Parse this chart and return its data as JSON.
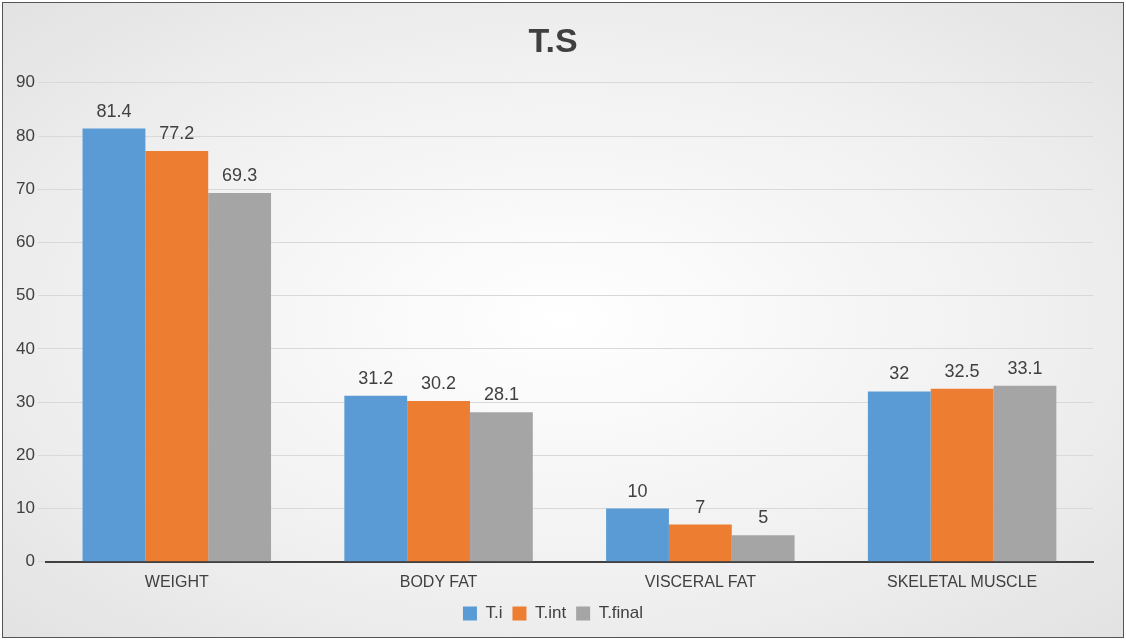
{
  "chart_data": {
    "type": "bar",
    "title": "T.S",
    "categories": [
      "WEIGHT",
      "BODY FAT",
      "VISCERAL FAT",
      "SKELETAL MUSCLE"
    ],
    "series": [
      {
        "name": "T.i",
        "color": "#5b9bd5",
        "values": [
          81.4,
          31.2,
          10,
          32
        ]
      },
      {
        "name": "T.int",
        "color": "#ed7d31",
        "values": [
          77.2,
          30.2,
          7,
          32.5
        ]
      },
      {
        "name": "T.final",
        "color": "#a5a5a5",
        "values": [
          69.3,
          28.1,
          5,
          33.1
        ]
      }
    ],
    "ylim": [
      0,
      90
    ],
    "yticks": [
      0,
      10,
      20,
      30,
      40,
      50,
      60,
      70,
      80,
      90
    ],
    "grid": "y",
    "legend": "bottom",
    "data_labels": true
  }
}
